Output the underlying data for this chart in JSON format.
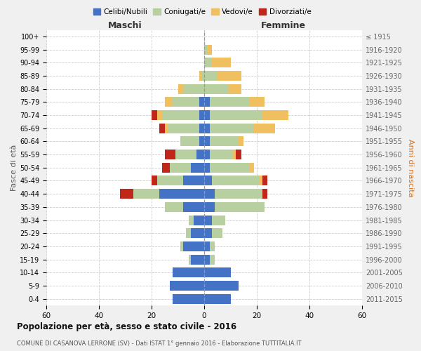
{
  "age_groups": [
    "0-4",
    "5-9",
    "10-14",
    "15-19",
    "20-24",
    "25-29",
    "30-34",
    "35-39",
    "40-44",
    "45-49",
    "50-54",
    "55-59",
    "60-64",
    "65-69",
    "70-74",
    "75-79",
    "80-84",
    "85-89",
    "90-94",
    "95-99",
    "100+"
  ],
  "birth_years": [
    "2011-2015",
    "2006-2010",
    "2001-2005",
    "1996-2000",
    "1991-1995",
    "1986-1990",
    "1981-1985",
    "1976-1980",
    "1971-1975",
    "1966-1970",
    "1961-1965",
    "1956-1960",
    "1951-1955",
    "1946-1950",
    "1941-1945",
    "1936-1940",
    "1931-1935",
    "1926-1930",
    "1921-1925",
    "1916-1920",
    "≤ 1915"
  ],
  "males": {
    "celibi": [
      12,
      13,
      12,
      5,
      8,
      5,
      4,
      8,
      17,
      8,
      5,
      3,
      2,
      2,
      2,
      2,
      0,
      0,
      0,
      0,
      0
    ],
    "coniugati": [
      0,
      0,
      0,
      1,
      1,
      2,
      2,
      7,
      10,
      10,
      8,
      8,
      7,
      12,
      14,
      10,
      8,
      1,
      0,
      0,
      0
    ],
    "vedovi": [
      0,
      0,
      0,
      0,
      0,
      0,
      0,
      0,
      0,
      0,
      0,
      0,
      0,
      1,
      2,
      3,
      2,
      1,
      0,
      0,
      0
    ],
    "divorziati": [
      0,
      0,
      0,
      0,
      0,
      0,
      0,
      0,
      5,
      2,
      3,
      4,
      0,
      2,
      2,
      0,
      0,
      0,
      0,
      0,
      0
    ]
  },
  "females": {
    "nubili": [
      10,
      13,
      10,
      2,
      2,
      3,
      3,
      4,
      4,
      3,
      2,
      2,
      2,
      2,
      2,
      2,
      0,
      0,
      0,
      0,
      0
    ],
    "coniugate": [
      0,
      0,
      0,
      2,
      2,
      4,
      5,
      19,
      18,
      18,
      15,
      9,
      11,
      17,
      20,
      15,
      9,
      5,
      3,
      1,
      0
    ],
    "vedove": [
      0,
      0,
      0,
      0,
      0,
      0,
      0,
      0,
      0,
      1,
      2,
      1,
      2,
      8,
      10,
      6,
      5,
      9,
      7,
      2,
      0
    ],
    "divorziate": [
      0,
      0,
      0,
      0,
      0,
      0,
      0,
      0,
      2,
      2,
      0,
      2,
      0,
      0,
      0,
      0,
      0,
      0,
      0,
      0,
      0
    ]
  },
  "colors": {
    "celibi": "#4472c4",
    "coniugati": "#b8cfa0",
    "vedovi": "#f0c060",
    "divorziati": "#c0271a"
  },
  "xlim": 60,
  "title": "Popolazione per età, sesso e stato civile - 2016",
  "subtitle": "COMUNE DI CASANOVA LERRONE (SV) - Dati ISTAT 1° gennaio 2016 - Elaborazione TUTTITALIA.IT",
  "ylabel_left": "Fasce di età",
  "ylabel_right": "Anni di nascita",
  "xlabel_left": "Maschi",
  "xlabel_right": "Femmine",
  "legend_labels": [
    "Celibi/Nubili",
    "Coniugati/e",
    "Vedovi/e",
    "Divorziati/e"
  ],
  "bg_color": "#f0f0f0",
  "plot_bg": "#ffffff"
}
